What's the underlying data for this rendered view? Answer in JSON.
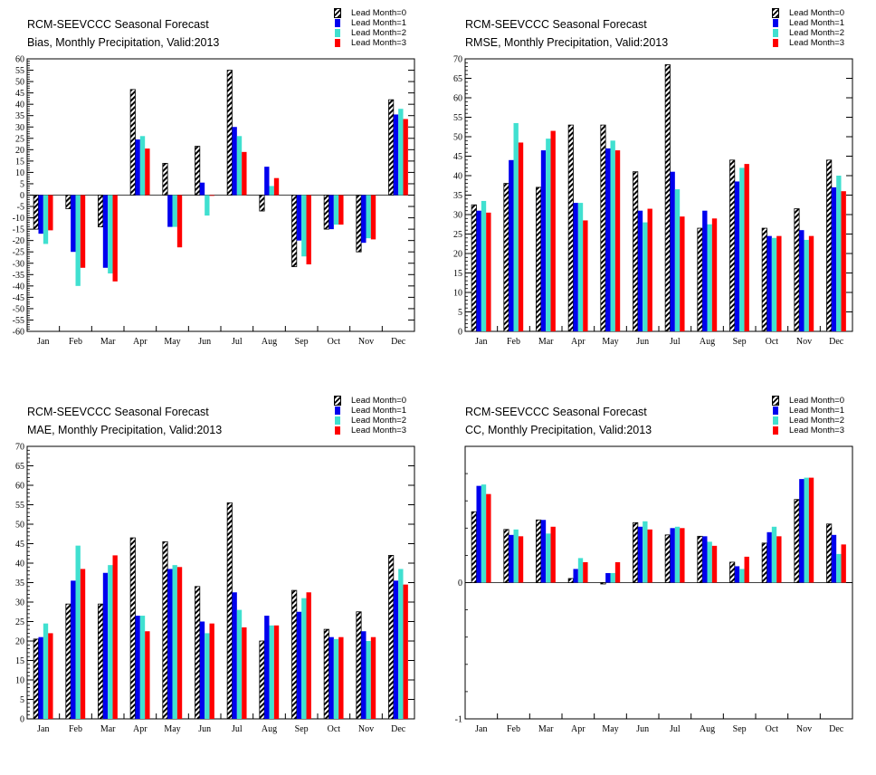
{
  "months": [
    "Jan",
    "Feb",
    "Mar",
    "Apr",
    "May",
    "Jun",
    "Jul",
    "Aug",
    "Sep",
    "Oct",
    "Nov",
    "Dec"
  ],
  "legend": [
    "Lead Month=0",
    "Lead Month=1",
    "Lead Month=2",
    "Lead Month=3"
  ],
  "colors": {
    "lead0": "hatched-black",
    "lead1": "#0000ee",
    "lead2": "#40e0d0",
    "lead3": "#ff0000"
  },
  "chart_data": [
    {
      "type": "bar",
      "title": "RCM-SEEVCCC Seasonal Forecast",
      "subtitle": "Bias, Monthly Precipitation, Valid:2013",
      "categories": [
        "Jan",
        "Feb",
        "Mar",
        "Apr",
        "May",
        "Jun",
        "Jul",
        "Aug",
        "Sep",
        "Oct",
        "Nov",
        "Dec"
      ],
      "ylim": [
        -60,
        60
      ],
      "yticks": [
        -60,
        -55,
        -50,
        -45,
        -40,
        -35,
        -30,
        -25,
        -20,
        -15,
        -10,
        -5,
        0,
        5,
        10,
        15,
        20,
        25,
        30,
        35,
        40,
        45,
        50,
        55,
        60
      ],
      "series": [
        {
          "name": "Lead Month=0",
          "values": [
            -15,
            -6,
            -14,
            46.5,
            14,
            21.5,
            55,
            -7,
            -31.5,
            -15,
            -25,
            42
          ]
        },
        {
          "name": "Lead Month=1",
          "values": [
            -17,
            -25,
            -32,
            24.5,
            -14,
            5.5,
            30,
            12.5,
            -20,
            -15,
            -21,
            35.5
          ]
        },
        {
          "name": "Lead Month=2",
          "values": [
            -21.5,
            -40,
            -34.5,
            26,
            -14,
            -9,
            26,
            4,
            -27,
            -13,
            -19,
            38
          ]
        },
        {
          "name": "Lead Month=3",
          "values": [
            -15.5,
            -32,
            -38,
            20.5,
            -23,
            0,
            19,
            7.5,
            -30.5,
            -13,
            -19.5,
            33.5
          ]
        }
      ]
    },
    {
      "type": "bar",
      "title": "RCM-SEEVCCC Seasonal Forecast",
      "subtitle": "RMSE, Monthly Precipitation, Valid:2013",
      "categories": [
        "Jan",
        "Feb",
        "Mar",
        "Apr",
        "May",
        "Jun",
        "Jul",
        "Aug",
        "Sep",
        "Oct",
        "Nov",
        "Dec"
      ],
      "ylim": [
        0,
        70
      ],
      "yticks": [
        0,
        5,
        10,
        15,
        20,
        25,
        30,
        35,
        40,
        45,
        50,
        55,
        60,
        65,
        70
      ],
      "series": [
        {
          "name": "Lead Month=0",
          "values": [
            32.5,
            38,
            37,
            53,
            53,
            41,
            68.5,
            26.5,
            44,
            26.5,
            31.5,
            44
          ]
        },
        {
          "name": "Lead Month=1",
          "values": [
            31,
            44,
            46.5,
            33,
            47,
            31,
            41,
            31,
            38.5,
            24.5,
            26,
            37
          ]
        },
        {
          "name": "Lead Month=2",
          "values": [
            33.5,
            53.5,
            49.5,
            33,
            49,
            28,
            36.5,
            27.5,
            42,
            24,
            23.5,
            40
          ]
        },
        {
          "name": "Lead Month=3",
          "values": [
            30.5,
            48.5,
            51.5,
            28.5,
            46.5,
            31.5,
            29.5,
            29,
            43,
            24.5,
            24.5,
            36
          ]
        }
      ]
    },
    {
      "type": "bar",
      "title": "RCM-SEEVCCC Seasonal Forecast",
      "subtitle": "MAE, Monthly Precipitation, Valid:2013",
      "categories": [
        "Jan",
        "Feb",
        "Mar",
        "Apr",
        "May",
        "Jun",
        "Jul",
        "Aug",
        "Sep",
        "Oct",
        "Nov",
        "Dec"
      ],
      "ylim": [
        0,
        70
      ],
      "yticks": [
        0,
        5,
        10,
        15,
        20,
        25,
        30,
        35,
        40,
        45,
        50,
        55,
        60,
        65,
        70
      ],
      "series": [
        {
          "name": "Lead Month=0",
          "values": [
            20.5,
            29.5,
            29.5,
            46.5,
            45.5,
            34,
            55.5,
            20,
            33,
            23,
            27.5,
            42
          ]
        },
        {
          "name": "Lead Month=1",
          "values": [
            21,
            35.5,
            37.5,
            26.5,
            38.5,
            25,
            32.5,
            26.5,
            27.5,
            21,
            22.5,
            35.5
          ]
        },
        {
          "name": "Lead Month=2",
          "values": [
            24.5,
            44.5,
            39.5,
            26.5,
            39.5,
            22,
            28,
            24,
            31,
            20.5,
            20,
            38.5
          ]
        },
        {
          "name": "Lead Month=3",
          "values": [
            22,
            38.5,
            42,
            22.5,
            39,
            24.5,
            23.5,
            24,
            32.5,
            21,
            21,
            34.5
          ]
        }
      ]
    },
    {
      "type": "bar",
      "title": "RCM-SEEVCCC Seasonal Forecast",
      "subtitle": "CC, Monthly Precipitation, Valid:2013",
      "categories": [
        "Jan",
        "Feb",
        "Mar",
        "Apr",
        "May",
        "Jun",
        "Jul",
        "Aug",
        "Sep",
        "Oct",
        "Nov",
        "Dec"
      ],
      "ylim": [
        -1,
        1
      ],
      "yticks": [
        -1,
        0
      ],
      "series": [
        {
          "name": "Lead Month=0",
          "values": [
            0.52,
            0.39,
            0.46,
            0.03,
            -0.01,
            0.44,
            0.35,
            0.34,
            0.15,
            0.29,
            0.61,
            0.43
          ]
        },
        {
          "name": "Lead Month=1",
          "values": [
            0.71,
            0.35,
            0.46,
            0.1,
            0.07,
            0.41,
            0.4,
            0.34,
            0.12,
            0.37,
            0.76,
            0.35
          ]
        },
        {
          "name": "Lead Month=2",
          "values": [
            0.72,
            0.39,
            0.36,
            0.18,
            0.07,
            0.45,
            0.41,
            0.3,
            0.1,
            0.41,
            0.77,
            0.21
          ]
        },
        {
          "name": "Lead Month=3",
          "values": [
            0.65,
            0.34,
            0.41,
            0.15,
            0.15,
            0.39,
            0.4,
            0.27,
            0.19,
            0.34,
            0.77,
            0.28
          ]
        }
      ]
    }
  ]
}
